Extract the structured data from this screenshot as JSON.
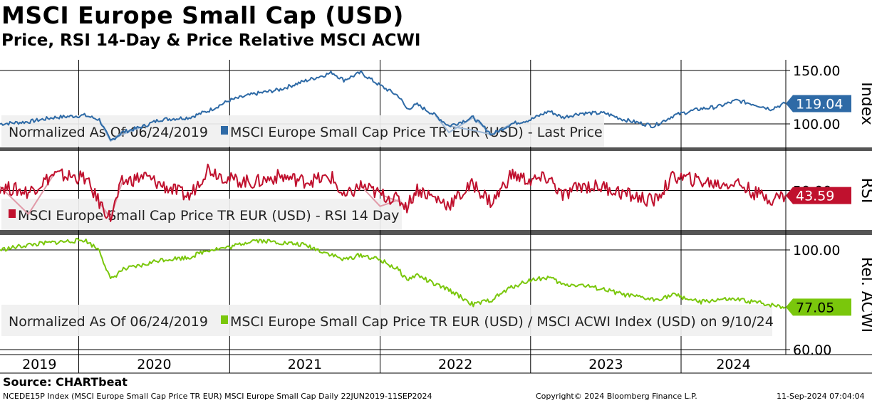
{
  "header": {
    "title": "MSCI Europe Small Cap (USD)",
    "subtitle": "Price, RSI 14-Day & Price Relative MSCI ACWI"
  },
  "footer": {
    "source": "Source: CHARTbeat",
    "ticker_info": "NCEDE15P Index (MSCI Europe Small Cap Price TR EUR) MSCI Europe Small Cap  Daily 22JUN2019-11SEP2024",
    "copyright": "Copyright© 2024 Bloomberg Finance L.P.",
    "timestamp": "11-Sep-2024 07:04:04"
  },
  "chart_data": [
    {
      "type": "line",
      "panel": "price",
      "axis_label": "Index",
      "legend_prefix": "Normalized As Of 06/24/2019",
      "series": [
        {
          "name": "MSCI Europe Small Cap Price TR EUR (USD) - Last Price",
          "color": "#2e6aa6"
        }
      ],
      "last_value_label": "119.04",
      "ticks": [
        "150.00",
        "100.00"
      ],
      "ylim": [
        78,
        160
      ],
      "x": [
        "2019-06-24",
        "2019-09-01",
        "2019-11-01",
        "2020-01-15",
        "2020-02-20",
        "2020-03-18",
        "2020-04-15",
        "2020-06-08",
        "2020-07-15",
        "2020-09-25",
        "2020-11-09",
        "2021-01-01",
        "2021-03-01",
        "2021-05-01",
        "2021-07-01",
        "2021-09-07",
        "2021-10-05",
        "2021-11-15",
        "2022-01-01",
        "2022-02-15",
        "2022-03-07",
        "2022-04-01",
        "2022-05-15",
        "2022-06-17",
        "2022-08-15",
        "2022-09-29",
        "2022-11-15",
        "2023-01-01",
        "2023-02-15",
        "2023-03-20",
        "2023-05-01",
        "2023-07-01",
        "2023-08-15",
        "2023-10-27",
        "2023-12-15",
        "2024-02-15",
        "2024-03-30",
        "2024-05-15",
        "2024-06-30",
        "2024-08-05",
        "2024-09-10"
      ],
      "values": [
        100,
        102,
        106,
        108,
        104,
        84,
        92,
        98,
        104,
        106,
        112,
        122,
        128,
        132,
        140,
        148,
        141,
        148,
        136,
        126,
        114,
        118,
        108,
        98,
        106,
        90,
        100,
        104,
        112,
        106,
        110,
        110,
        104,
        98,
        108,
        114,
        116,
        122,
        118,
        114,
        119.04
      ],
      "shaded_values": [
        null,
        null,
        null,
        null,
        null,
        84,
        90,
        null,
        null,
        null,
        null,
        null,
        null,
        null,
        null,
        null,
        null,
        null,
        null,
        null,
        null,
        null,
        null,
        92,
        94,
        90,
        null,
        null,
        null,
        null,
        null,
        null,
        null,
        null,
        null,
        null,
        null,
        null,
        null,
        null,
        null
      ]
    },
    {
      "type": "line",
      "panel": "rsi",
      "axis_label": "RSI",
      "series": [
        {
          "name": "MSCI Europe Small Cap Price TR EUR (USD) - RSI 14 Day",
          "color": "#c0112e"
        }
      ],
      "last_value_label": "43.59",
      "ticks": [
        "50.00"
      ],
      "ylim": [
        0,
        100
      ],
      "x": [
        "2019-06-24",
        "2019-09-01",
        "2019-11-01",
        "2020-01-15",
        "2020-02-20",
        "2020-03-18",
        "2020-04-15",
        "2020-06-08",
        "2020-07-15",
        "2020-09-25",
        "2020-11-09",
        "2021-01-01",
        "2021-03-01",
        "2021-05-01",
        "2021-07-01",
        "2021-09-07",
        "2021-10-05",
        "2021-11-15",
        "2022-01-01",
        "2022-02-15",
        "2022-03-07",
        "2022-04-01",
        "2022-05-15",
        "2022-06-17",
        "2022-08-15",
        "2022-09-29",
        "2022-11-15",
        "2023-01-01",
        "2023-02-15",
        "2023-03-20",
        "2023-05-01",
        "2023-07-01",
        "2023-08-15",
        "2023-10-27",
        "2023-12-15",
        "2024-02-15",
        "2024-03-30",
        "2024-05-15",
        "2024-06-30",
        "2024-08-05",
        "2024-09-10"
      ],
      "values": [
        55,
        48,
        70,
        66,
        35,
        15,
        60,
        68,
        58,
        42,
        78,
        64,
        60,
        68,
        62,
        66,
        40,
        56,
        45,
        38,
        30,
        52,
        40,
        32,
        58,
        34,
        70,
        62,
        66,
        42,
        56,
        54,
        46,
        36,
        68,
        62,
        58,
        60,
        46,
        40,
        43.59
      ],
      "shaded_values": [
        null,
        20,
        null,
        null,
        null,
        15,
        null,
        null,
        null,
        null,
        null,
        null,
        null,
        null,
        null,
        null,
        null,
        null,
        30,
        36,
        28,
        null,
        null,
        null,
        null,
        null,
        null,
        null,
        null,
        null,
        null,
        null,
        null,
        null,
        null,
        null,
        null,
        null,
        null,
        null,
        null
      ]
    },
    {
      "type": "line",
      "panel": "relative",
      "axis_label": "Rel. ACWI",
      "legend_prefix": "Normalized As Of 06/24/2019",
      "series": [
        {
          "name": "MSCI Europe Small Cap Price TR EUR (USD) / MSCI ACWI Index (USD) on 9/10/24",
          "color": "#7ac70c"
        }
      ],
      "last_value_label": "77.05",
      "ticks": [
        "100.00",
        "60.00"
      ],
      "ylim": [
        58,
        106
      ],
      "x": [
        "2019-06-24",
        "2019-09-01",
        "2019-11-01",
        "2020-01-15",
        "2020-02-20",
        "2020-03-18",
        "2020-04-15",
        "2020-06-08",
        "2020-07-15",
        "2020-09-25",
        "2020-11-09",
        "2021-01-01",
        "2021-03-01",
        "2021-05-01",
        "2021-07-01",
        "2021-09-07",
        "2021-10-05",
        "2021-11-15",
        "2022-01-01",
        "2022-02-15",
        "2022-03-07",
        "2022-04-01",
        "2022-05-15",
        "2022-06-17",
        "2022-08-15",
        "2022-09-29",
        "2022-11-15",
        "2023-01-01",
        "2023-02-15",
        "2023-03-20",
        "2023-05-01",
        "2023-07-01",
        "2023-08-15",
        "2023-10-27",
        "2023-12-15",
        "2024-02-15",
        "2024-03-30",
        "2024-05-15",
        "2024-06-30",
        "2024-08-05",
        "2024-09-10"
      ],
      "values": [
        100,
        102,
        103,
        104,
        100,
        88,
        92,
        94,
        96,
        97,
        100,
        101,
        104,
        103,
        102,
        98,
        96,
        98,
        96,
        92,
        88,
        90,
        86,
        84,
        78,
        80,
        85,
        88,
        89,
        86,
        86,
        84,
        82,
        80,
        82,
        79,
        80,
        80,
        79,
        78,
        77.05
      ]
    }
  ],
  "x_axis": {
    "years": [
      "2019",
      "2020",
      "2021",
      "2022",
      "2023",
      "2024"
    ],
    "year_bounds": [
      "2019-06-24",
      "2020-01-01",
      "2021-01-01",
      "2022-01-01",
      "2023-01-01",
      "2024-01-01",
      "2024-09-11"
    ],
    "range": [
      "2019-06-24",
      "2024-09-11"
    ]
  },
  "colors": {
    "axis_label_bg": "#f2f2f2",
    "panel_divider": "#555555",
    "legend_bg": "#f0f0f0"
  }
}
